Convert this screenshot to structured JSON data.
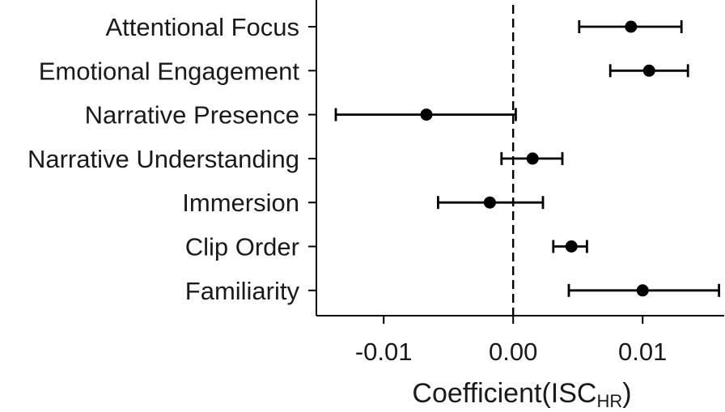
{
  "chart_data": {
    "type": "scatter",
    "subtype": "coefficient-forest-plot",
    "title": "",
    "xlabel": "Coefficient(ISC",
    "xlabel_subscript": "HR",
    "xlabel_close": ")",
    "ylabel": "",
    "xlim": [
      -0.0152,
      0.0163
    ],
    "xticks": [
      -0.01,
      0.0,
      0.01
    ],
    "xtick_labels": [
      "-0.01",
      "0.00",
      "0.01"
    ],
    "reference_line": {
      "x": 0.0,
      "style": "dashed"
    },
    "grid": false,
    "legend": "none",
    "categories": [
      "Attentional Focus",
      "Emotional Engagement",
      "Narrative Presence",
      "Narrative Understanding",
      "Immersion",
      "Clip Order",
      "Familiarity"
    ],
    "estimates": [
      0.0091,
      0.0105,
      -0.0067,
      0.0015,
      -0.0018,
      0.0045,
      0.01
    ],
    "ci_lower": [
      0.0051,
      0.0075,
      -0.0137,
      -0.0009,
      -0.0058,
      0.0031,
      0.0043
    ],
    "ci_upper": [
      0.013,
      0.0135,
      0.0002,
      0.0038,
      0.0023,
      0.0057,
      0.0159
    ],
    "colors": {
      "marks": "#000000",
      "axis": "#000000",
      "text": "#1a1a1a"
    }
  }
}
